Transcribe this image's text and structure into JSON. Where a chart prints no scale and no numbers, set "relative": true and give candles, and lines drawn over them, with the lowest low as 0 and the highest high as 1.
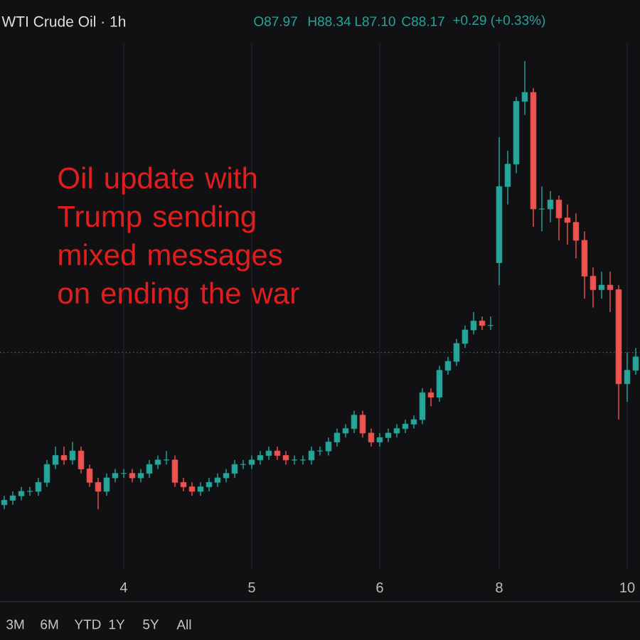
{
  "chart_data": {
    "type": "candlestick",
    "relative": true,
    "title": "Oil update with Trump sending mixed messages on ending the war",
    "subtitle": "WTI Crude Oil · 1h",
    "annotations": [
      "O87.97",
      "H88.34",
      "L87.10",
      "C88.17",
      "+0.29 (+0.33%)",
      "3M",
      "6M",
      "YTD",
      "1Y",
      "5Y",
      "All"
    ],
    "categories": [
      null,
      null,
      null,
      null,
      null,
      null,
      null,
      null,
      null,
      null,
      null,
      null,
      null,
      null,
      "4",
      null,
      null,
      null,
      null,
      null,
      null,
      null,
      null,
      null,
      null,
      null,
      null,
      null,
      null,
      "5",
      null,
      null,
      null,
      null,
      null,
      null,
      null,
      null,
      null,
      null,
      null,
      null,
      null,
      null,
      "6",
      null,
      null,
      null,
      null,
      null,
      null,
      null,
      null,
      null,
      null,
      null,
      null,
      null,
      "8",
      null,
      null,
      null,
      null,
      null,
      null,
      null,
      null,
      null,
      null,
      null,
      null,
      null,
      null,
      "10",
      null
    ],
    "ohlc": [
      [
        0.01,
        0.03,
        0.0,
        0.02
      ],
      [
        0.02,
        0.04,
        0.01,
        0.03
      ],
      [
        0.03,
        0.05,
        0.02,
        0.04
      ],
      [
        0.04,
        0.05,
        0.03,
        0.04
      ],
      [
        0.04,
        0.07,
        0.03,
        0.06
      ],
      [
        0.06,
        0.11,
        0.05,
        0.1
      ],
      [
        0.1,
        0.14,
        0.09,
        0.12
      ],
      [
        0.12,
        0.14,
        0.1,
        0.11
      ],
      [
        0.11,
        0.15,
        0.1,
        0.13
      ],
      [
        0.13,
        0.14,
        0.08,
        0.09
      ],
      [
        0.09,
        0.1,
        0.05,
        0.06
      ],
      [
        0.06,
        0.07,
        0.0,
        0.04
      ],
      [
        0.04,
        0.08,
        0.03,
        0.07
      ],
      [
        0.07,
        0.09,
        0.06,
        0.08
      ],
      [
        0.08,
        0.09,
        0.07,
        0.08
      ],
      [
        0.08,
        0.09,
        0.06,
        0.07
      ],
      [
        0.07,
        0.09,
        0.06,
        0.08
      ],
      [
        0.08,
        0.11,
        0.07,
        0.1
      ],
      [
        0.1,
        0.12,
        0.09,
        0.11
      ],
      [
        0.11,
        0.13,
        0.1,
        0.11
      ],
      [
        0.11,
        0.12,
        0.05,
        0.06
      ],
      [
        0.06,
        0.07,
        0.04,
        0.05
      ],
      [
        0.05,
        0.06,
        0.03,
        0.04
      ],
      [
        0.04,
        0.06,
        0.03,
        0.05
      ],
      [
        0.05,
        0.07,
        0.04,
        0.06
      ],
      [
        0.06,
        0.08,
        0.05,
        0.07
      ],
      [
        0.07,
        0.09,
        0.06,
        0.08
      ],
      [
        0.08,
        0.11,
        0.07,
        0.1
      ],
      [
        0.1,
        0.11,
        0.09,
        0.1
      ],
      [
        0.1,
        0.12,
        0.09,
        0.11
      ],
      [
        0.11,
        0.13,
        0.1,
        0.12
      ],
      [
        0.12,
        0.14,
        0.11,
        0.13
      ],
      [
        0.13,
        0.14,
        0.11,
        0.12
      ],
      [
        0.12,
        0.13,
        0.1,
        0.11
      ],
      [
        0.11,
        0.12,
        0.1,
        0.11
      ],
      [
        0.11,
        0.12,
        0.1,
        0.11
      ],
      [
        0.11,
        0.14,
        0.1,
        0.13
      ],
      [
        0.13,
        0.14,
        0.12,
        0.13
      ],
      [
        0.13,
        0.16,
        0.12,
        0.15
      ],
      [
        0.15,
        0.18,
        0.14,
        0.17
      ],
      [
        0.17,
        0.19,
        0.16,
        0.18
      ],
      [
        0.18,
        0.22,
        0.17,
        0.21
      ],
      [
        0.21,
        0.22,
        0.16,
        0.17
      ],
      [
        0.17,
        0.18,
        0.14,
        0.15
      ],
      [
        0.15,
        0.17,
        0.14,
        0.16
      ],
      [
        0.16,
        0.18,
        0.15,
        0.17
      ],
      [
        0.17,
        0.19,
        0.16,
        0.18
      ],
      [
        0.18,
        0.2,
        0.17,
        0.19
      ],
      [
        0.19,
        0.21,
        0.18,
        0.2
      ],
      [
        0.2,
        0.27,
        0.19,
        0.26
      ],
      [
        0.26,
        0.27,
        0.23,
        0.25
      ],
      [
        0.25,
        0.32,
        0.24,
        0.31
      ],
      [
        0.31,
        0.34,
        0.3,
        0.33
      ],
      [
        0.33,
        0.38,
        0.32,
        0.37
      ],
      [
        0.37,
        0.41,
        0.36,
        0.4
      ],
      [
        0.4,
        0.44,
        0.39,
        0.42
      ],
      [
        0.42,
        0.43,
        0.4,
        0.41
      ],
      [
        0.41,
        0.43,
        0.4,
        0.41
      ],
      [
        0.55,
        0.83,
        0.5,
        0.72
      ],
      [
        0.72,
        0.8,
        0.68,
        0.77
      ],
      [
        0.77,
        0.92,
        0.75,
        0.91
      ],
      [
        0.91,
        1.0,
        0.88,
        0.93
      ],
      [
        0.93,
        0.94,
        0.63,
        0.67
      ],
      [
        0.67,
        0.72,
        0.62,
        0.67
      ],
      [
        0.67,
        0.71,
        0.64,
        0.69
      ],
      [
        0.69,
        0.7,
        0.6,
        0.65
      ],
      [
        0.65,
        0.68,
        0.59,
        0.64
      ],
      [
        0.64,
        0.66,
        0.56,
        0.6
      ],
      [
        0.6,
        0.62,
        0.47,
        0.52
      ],
      [
        0.52,
        0.54,
        0.45,
        0.49
      ],
      [
        0.49,
        0.53,
        0.47,
        0.5
      ],
      [
        0.5,
        0.53,
        0.44,
        0.49
      ],
      [
        0.49,
        0.5,
        0.2,
        0.28
      ],
      [
        0.28,
        0.35,
        0.24,
        0.31
      ],
      [
        0.31,
        0.36,
        0.3,
        0.34
      ]
    ],
    "colors": [
      "#26a69a",
      "#26a69a",
      "#26a69a",
      "#26a69a",
      "#26a69a",
      "#26a69a",
      "#26a69a",
      "#ef5350",
      "#26a69a",
      "#ef5350",
      "#ef5350",
      "#ef5350",
      "#26a69a",
      "#26a69a",
      "#26a69a",
      "#ef5350",
      "#26a69a",
      "#26a69a",
      "#26a69a",
      "#26a69a",
      "#ef5350",
      "#ef5350",
      "#ef5350",
      "#26a69a",
      "#26a69a",
      "#26a69a",
      "#26a69a",
      "#26a69a",
      "#26a69a",
      "#26a69a",
      "#26a69a",
      "#26a69a",
      "#ef5350",
      "#ef5350",
      "#26a69a",
      "#26a69a",
      "#26a69a",
      "#26a69a",
      "#26a69a",
      "#26a69a",
      "#26a69a",
      "#26a69a",
      "#ef5350",
      "#ef5350",
      "#26a69a",
      "#26a69a",
      "#26a69a",
      "#26a69a",
      "#26a69a",
      "#26a69a",
      "#ef5350",
      "#26a69a",
      "#26a69a",
      "#26a69a",
      "#26a69a",
      "#26a69a",
      "#ef5350",
      "#26a69a",
      "#26a69a",
      "#26a69a",
      "#26a69a",
      "#26a69a",
      "#ef5350",
      "#26a69a",
      "#26a69a",
      "#ef5350",
      "#ef5350",
      "#ef5350",
      "#ef5350",
      "#ef5350",
      "#26a69a",
      "#ef5350",
      "#ef5350",
      "#26a69a",
      "#26a69a"
    ],
    "grid": "x",
    "ref_lines": [
      {
        "axis": "y",
        "value": 0.35,
        "color": "#4f8a7f",
        "line_style": "dotted"
      }
    ]
  }
}
